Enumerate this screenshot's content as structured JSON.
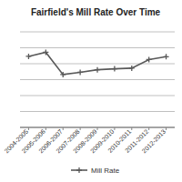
{
  "chart_data": {
    "type": "line",
    "title": "Fairfield's Mill Rate Over Time",
    "categories": [
      "2004-2005",
      "2005-2006",
      "2006-2007",
      "2007-2008",
      "2008-2009",
      "2009-2010",
      "2010-2011",
      "2011-2012",
      "2012-2013"
    ],
    "series": [
      {
        "name": "Mill Rate",
        "color": "#595959",
        "marker": "plus",
        "values": [
          22.3,
          23.6,
          16.6,
          17.3,
          18.1,
          18.4,
          18.6,
          21.3,
          22.2
        ]
      }
    ],
    "ylim": [
      0,
      30
    ],
    "yticks": [
      0,
      5,
      10,
      15,
      20,
      25,
      30
    ],
    "grid": true,
    "tick_labels": "x",
    "legend": "bottom"
  }
}
